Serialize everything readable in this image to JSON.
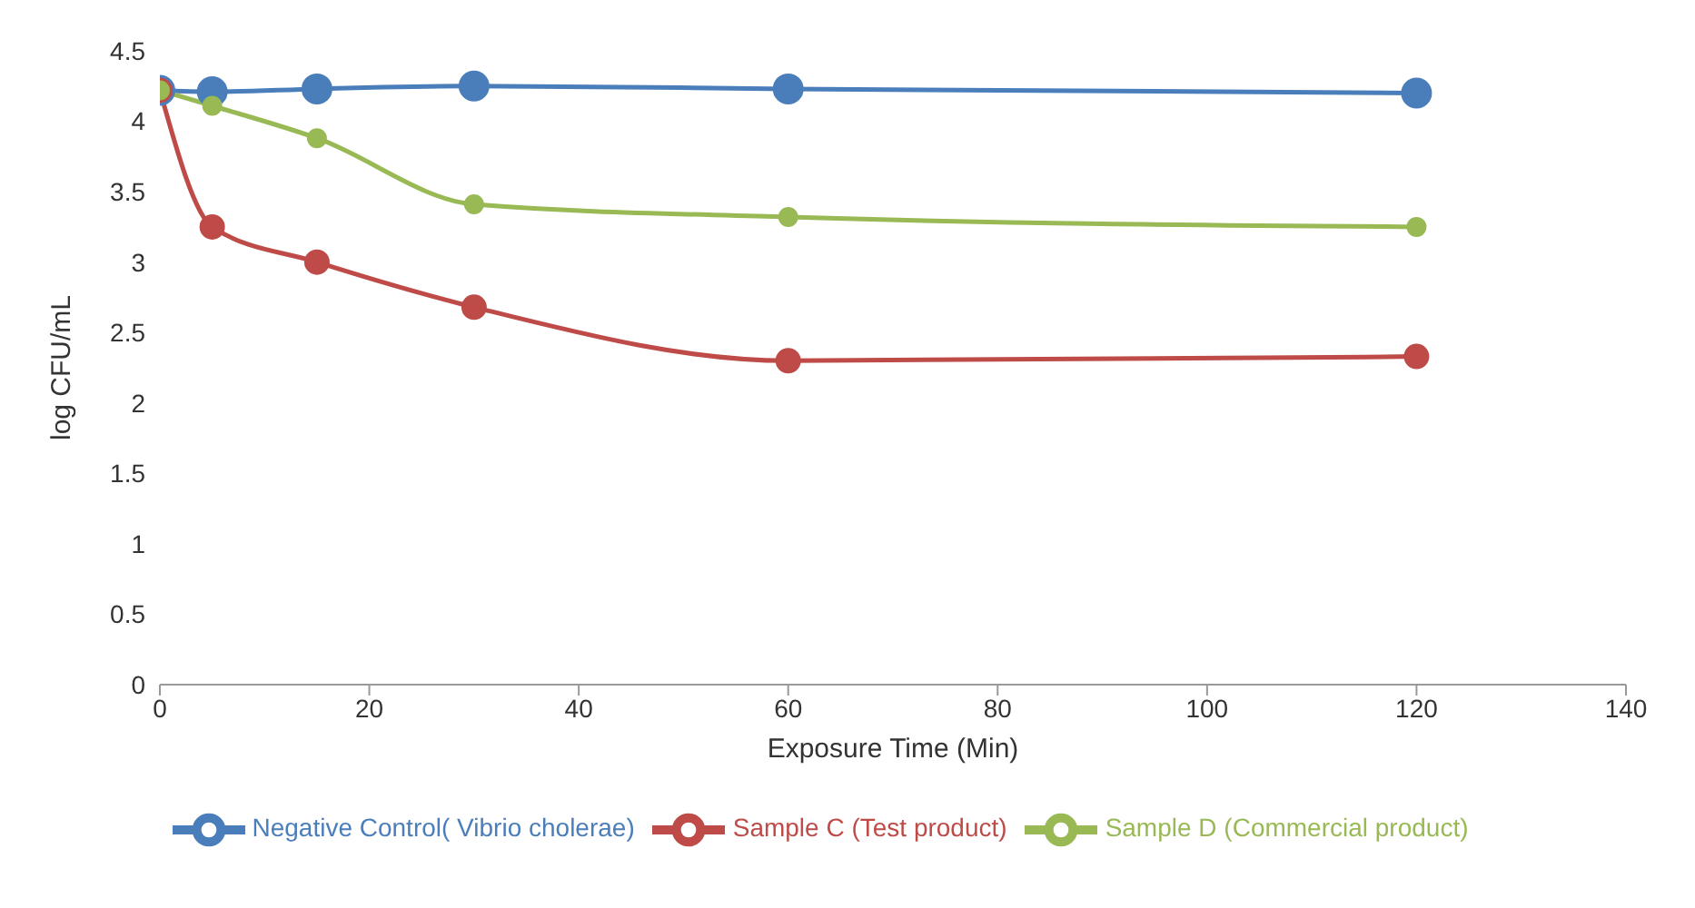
{
  "chart_data": {
    "type": "line",
    "xlabel": "Exposure Time (Min)",
    "ylabel": "log CFU/mL",
    "x": [
      0,
      5,
      15,
      30,
      60,
      120
    ],
    "series": [
      {
        "name": "Negative Control( Vibrio cholerae)",
        "color": "#4a7ebb",
        "values": [
          4.22,
          4.21,
          4.23,
          4.25,
          4.23,
          4.2
        ]
      },
      {
        "name": "Sample C (Test product)",
        "color": "#be4b48",
        "values": [
          4.22,
          3.25,
          3.0,
          2.68,
          2.3,
          2.33
        ]
      },
      {
        "name": "Sample D (Commercial product)",
        "color": "#98b954",
        "values": [
          4.22,
          4.11,
          3.88,
          3.41,
          3.32,
          3.25
        ]
      }
    ],
    "xlim": [
      0,
      140
    ],
    "xticks": [
      0,
      20,
      40,
      60,
      80,
      100,
      120,
      140
    ],
    "ylim": [
      0,
      4.5
    ],
    "yticks": [
      0,
      0.5,
      1,
      1.5,
      2,
      2.5,
      3,
      3.5,
      4,
      4.5
    ],
    "marker": "circle",
    "line_style": "solid",
    "legend": "bottom"
  }
}
